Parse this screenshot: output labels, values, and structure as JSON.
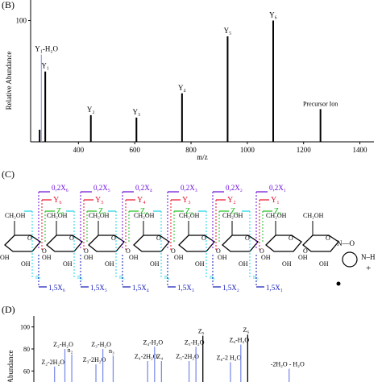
{
  "panels": {
    "b": {
      "label": "(B)"
    },
    "c": {
      "label": "(C)"
    },
    "d": {
      "label": "(D)"
    }
  },
  "colors": {
    "stick": "#000000",
    "blue_stick": "#7f8fe8",
    "cross_x": "#6a0ad8",
    "cross_y": "#e8102a",
    "z_ion": "#1cbd1c",
    "c_ion": "#19d6e6",
    "b_ion": "#1219b8",
    "sugar": "#000000"
  },
  "chart_data": [
    {
      "type": "bar",
      "panel": "B",
      "xlabel": "m/z",
      "ylabel": "Relative Abundance",
      "xlim": [
        230,
        1450
      ],
      "ylim": [
        0,
        105
      ],
      "xticks": [
        400,
        600,
        800,
        1000,
        1200,
        1400
      ],
      "yticks": [
        100
      ],
      "peaks": [
        {
          "x": 262,
          "y": 10,
          "label": ""
        },
        {
          "x": 268,
          "y": 72,
          "label": "Y₁-H₂O",
          "color": "blue"
        },
        {
          "x": 282,
          "y": 58,
          "label": "Y₁"
        },
        {
          "x": 444,
          "y": 22,
          "label": "Y₂"
        },
        {
          "x": 606,
          "y": 20,
          "label": "Y₃"
        },
        {
          "x": 768,
          "y": 40,
          "label": "Y₄"
        },
        {
          "x": 930,
          "y": 87,
          "label": "Y₅"
        },
        {
          "x": 1092,
          "y": 100,
          "label": "Y₆"
        },
        {
          "x": 1260,
          "y": 27,
          "label": "Precursor Ion"
        }
      ]
    },
    {
      "type": "bar",
      "panel": "D",
      "ylabel": "Abundance",
      "ylim": [
        50,
        110
      ],
      "yticks": [
        100,
        80,
        60
      ],
      "peaks": [
        {
          "x": 0.06,
          "y": 64,
          "label": "Z₂-2H₂O",
          "color": "blue"
        },
        {
          "x": 0.09,
          "y": 80,
          "label": "Z₂-H₂O",
          "color": "blue"
        },
        {
          "x": 0.11,
          "y": 75,
          "label": "n₂",
          "color": "blue"
        },
        {
          "x": 0.18,
          "y": 66,
          "label": "Z₃-2H₂O",
          "color": "blue"
        },
        {
          "x": 0.2,
          "y": 80,
          "label": "Z₃-H₂O",
          "color": "blue"
        },
        {
          "x": 0.23,
          "y": 74,
          "label": "n₃",
          "color": "blue"
        },
        {
          "x": 0.33,
          "y": 69,
          "label": "Z₄-2H₂O",
          "color": "blue"
        },
        {
          "x": 0.35,
          "y": 82,
          "label": "Z₄-H₂O",
          "color": "blue"
        },
        {
          "x": 0.37,
          "y": 69,
          "label": "Z₄",
          "color": "blue"
        },
        {
          "x": 0.45,
          "y": 69,
          "label": "Z₅-2H₂O",
          "color": "blue"
        },
        {
          "x": 0.47,
          "y": 82,
          "label": "Z₅-H₂O",
          "color": "blue"
        },
        {
          "x": 0.49,
          "y": 92,
          "label": "Z₅"
        },
        {
          "x": 0.57,
          "y": 68,
          "label": "Z₆-2 H₂O",
          "color": "blue"
        },
        {
          "x": 0.6,
          "y": 84,
          "label": "Z₆-H₂O",
          "color": "blue"
        },
        {
          "x": 0.62,
          "y": 93,
          "label": "Z₆"
        },
        {
          "x": 0.74,
          "y": 62,
          "label": "-2H₂O - H₂O",
          "color": "blue"
        }
      ]
    }
  ],
  "scheme": {
    "cross_x": [
      "0,2X₆",
      "0,2X₅",
      "0,2X₄",
      "0,2X₃",
      "0,2X₂",
      "0,2X₁"
    ],
    "y_ions": [
      "Y₆",
      "Y₅",
      "Y₄",
      "Y₃",
      "Y₂",
      "Y₁"
    ],
    "z_ions": [
      "Z₆",
      "Z₅",
      "Z₄",
      "Z₃",
      "Z₂",
      "Z₁"
    ],
    "c_ions": [
      "n₇",
      "n₆",
      "n₅",
      "n₄",
      "n₃",
      "n₂"
    ],
    "b_ions": [
      "1,5X₆",
      "1,5X₅",
      "1,5X₄",
      "1,5X₃",
      "1,5X₂",
      "1,5X₁"
    ],
    "ring_labels": {
      "ch2oh": "CH₂OH",
      "oh": "OH",
      "o": "O"
    },
    "reducing_end": {
      "noo": "N—O",
      "nh": "N–H",
      "plus": "+",
      "h": "H"
    }
  }
}
